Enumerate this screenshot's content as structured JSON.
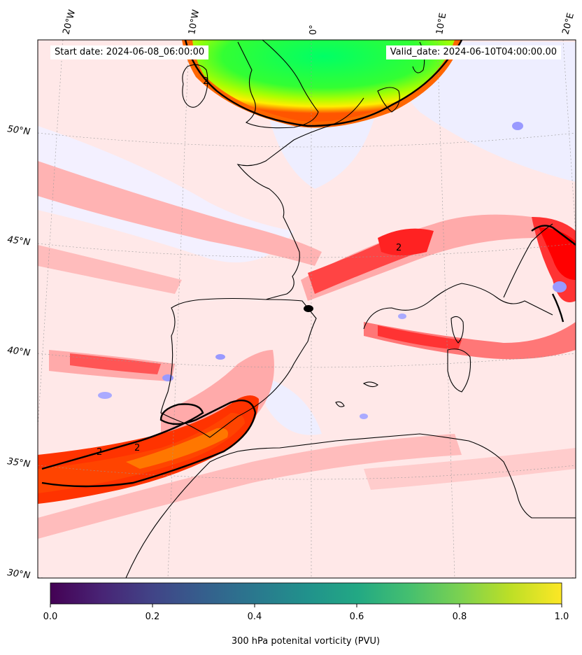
{
  "map": {
    "start_label": "Start date: 2024-06-08_06:00:00",
    "valid_label": "Valid_date: 2024-06-10T04:00:00.00",
    "lon_labels": [
      "20°W",
      "10°W",
      "0°",
      "10°E",
      "20°E"
    ],
    "lat_labels": [
      "50°N",
      "45°N",
      "40°N",
      "35°N",
      "30°N"
    ],
    "contour_labels": [
      "2",
      "2",
      "2",
      "2"
    ],
    "colors": {
      "land_outline": "#000000",
      "pv_low": "#ffe6e6",
      "pv_mid": "#ff6666",
      "pv_high": "#ff0000",
      "pv_very_high": "#00ff66",
      "pv_neg": "#ccccff"
    }
  },
  "colorbar": {
    "colormap": "viridis",
    "ticks": [
      "0.0",
      "0.2",
      "0.4",
      "0.6",
      "0.8",
      "1.0"
    ],
    "title": "300 hPa potenital vorticity (PVU)"
  }
}
